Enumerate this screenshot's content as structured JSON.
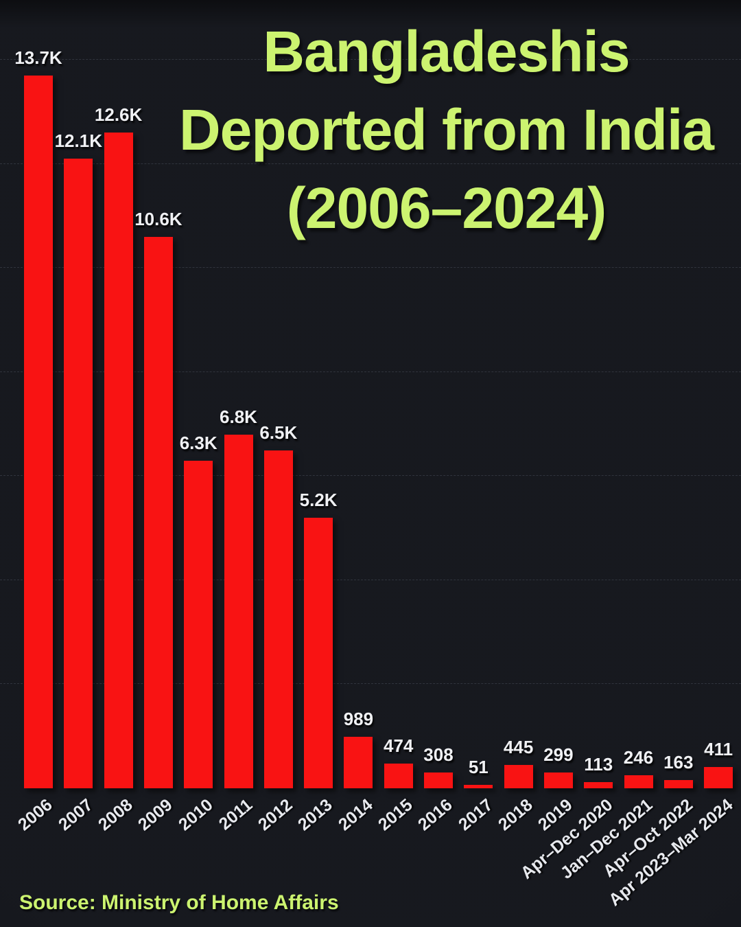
{
  "title": {
    "lines": [
      "Bangladeshis",
      "Deported from India",
      "(2006–2024)"
    ]
  },
  "source": "Source: Ministry of Home Affairs",
  "colors": {
    "background": "#14161c",
    "bar": "#f91010",
    "title_text": "#cbf36e",
    "value_label": "#f0f1f4",
    "tick_label": "#e7e9ee",
    "gridline": "#8c98af"
  },
  "chart_data": {
    "type": "bar",
    "title": "Bangladeshis Deported from India (2006–2024)",
    "xlabel": "",
    "ylabel": "",
    "categories": [
      "2006",
      "2007",
      "2008",
      "2009",
      "2010",
      "2011",
      "2012",
      "2013",
      "2014",
      "2015",
      "2016",
      "2017",
      "2018",
      "2019",
      "Apr–Dec 2020",
      "Jan–Dec 2021",
      "Apr–Oct 2022",
      "Apr 2023–Mar 2024"
    ],
    "values": [
      13700,
      12100,
      12600,
      10600,
      6300,
      6800,
      6500,
      5200,
      989,
      474,
      308,
      51,
      445,
      299,
      113,
      246,
      163,
      411
    ],
    "bar_labels": [
      "13.7K",
      "12.1K",
      "12.6K",
      "10.6K",
      "6.3K",
      "6.8K",
      "6.5K",
      "5.2K",
      "989",
      "474",
      "308",
      "51",
      "445",
      "299",
      "113",
      "246",
      "163",
      "411"
    ],
    "ylim": [
      0,
      14000
    ],
    "grid": "horizontal dashed lines every 2000, no y-axis tick labels",
    "legend": false,
    "tick_rotation_deg": 40
  }
}
